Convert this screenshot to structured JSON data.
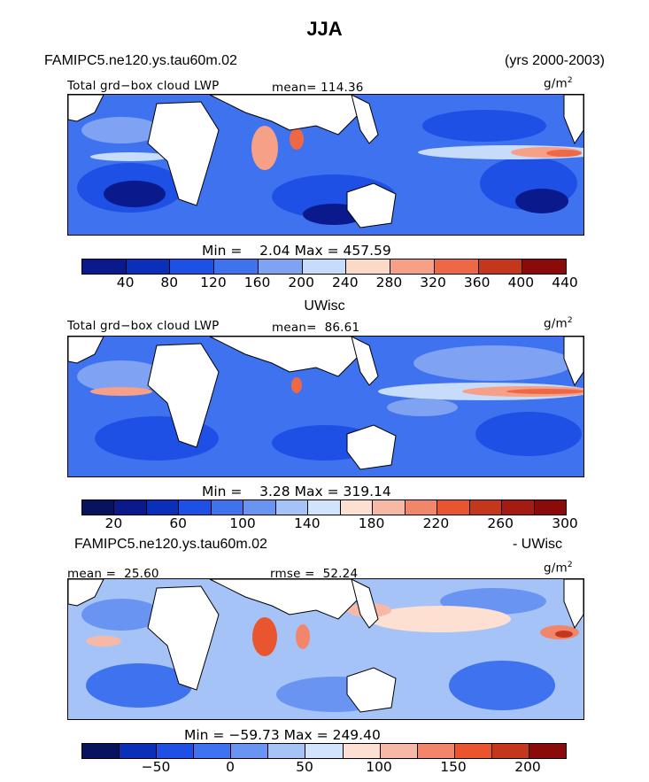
{
  "title": "JJA",
  "header": {
    "case": "FAMIPC5.ne120.ys.tau60m.02",
    "years": "(yrs 2000-2003)"
  },
  "colors": {
    "cool_to_warm_11": [
      "#0a1a8c",
      "#0a2fb8",
      "#1e50e6",
      "#3f72ee",
      "#7fa2f3",
      "#c7dbfa",
      "#fbd9c8",
      "#f6a088",
      "#ee6846",
      "#c4371c",
      "#8b0a0a"
    ],
    "diff_13": [
      "#08135f",
      "#0a2fb8",
      "#1e50e6",
      "#3f72ee",
      "#6a94f2",
      "#a6c3f7",
      "#d2e3fc",
      "#fde0d2",
      "#f7b9a5",
      "#f2866a",
      "#e9552e",
      "#c4371c",
      "#8b0a0a"
    ],
    "land": "#ffffff",
    "outline": "#000000"
  },
  "panels": [
    {
      "name": "FAMIPC5",
      "label": "Total grd−box cloud LWP",
      "mean_label": "mean=",
      "mean": "114.36",
      "unit": "g/m",
      "unit_exp": "2",
      "min_label": "Min =",
      "min": "2.04",
      "max_label": "Max =",
      "max": "457.59",
      "ticks": [
        "40",
        "80",
        "120",
        "160",
        "200",
        "240",
        "280",
        "320",
        "360",
        "400",
        "440"
      ]
    },
    {
      "name": "UWisc",
      "title": "UWisc",
      "label": "Total grd−box cloud LWP",
      "mean_label": "mean=",
      "mean": "86.61",
      "unit": "g/m",
      "unit_exp": "2",
      "min_label": "Min =",
      "min": "3.28",
      "max_label": "Max =",
      "max": "319.14",
      "ticks": [
        "20",
        "60",
        "100",
        "140",
        "180",
        "220",
        "260",
        "300"
      ]
    },
    {
      "name": "difference",
      "title_left": "FAMIPC5.ne120.ys.tau60m.02",
      "title_right": "- UWisc",
      "mean_label": "mean =",
      "mean": "25.60",
      "rmse_label": "rmse =",
      "rmse": "52.24",
      "unit": "g/m",
      "unit_exp": "2",
      "min_label": "Min =",
      "min": "−59.73",
      "max_label": "Max =",
      "max": "249.40",
      "ticks": [
        "−50",
        "0",
        "50",
        "100",
        "150",
        "200"
      ]
    }
  ],
  "chart_data": [
    {
      "type": "heatmap",
      "title": "JJA",
      "subtitle": "Total grd−box cloud LWP",
      "unit": "g/m2",
      "mean": 114.36,
      "min": 2.04,
      "max": 457.59,
      "colorbar_levels": [
        40,
        80,
        120,
        160,
        200,
        240,
        280,
        320,
        360,
        400,
        440
      ]
    },
    {
      "type": "heatmap",
      "title": "UWisc",
      "subtitle": "Total grd−box cloud LWP",
      "unit": "g/m2",
      "mean": 86.61,
      "min": 3.28,
      "max": 319.14,
      "colorbar_levels": [
        20,
        40,
        60,
        80,
        100,
        120,
        140,
        160,
        180,
        200,
        220,
        240,
        260,
        280,
        300
      ]
    },
    {
      "type": "heatmap",
      "title": "FAMIPC5.ne120.ys.tau60m.02 - UWisc",
      "unit": "g/m2",
      "mean": 25.6,
      "rmse": 52.24,
      "min": -59.73,
      "max": 249.4,
      "colorbar_levels": [
        -50,
        -25,
        0,
        25,
        50,
        75,
        100,
        125,
        150,
        175,
        200,
        225
      ]
    }
  ]
}
